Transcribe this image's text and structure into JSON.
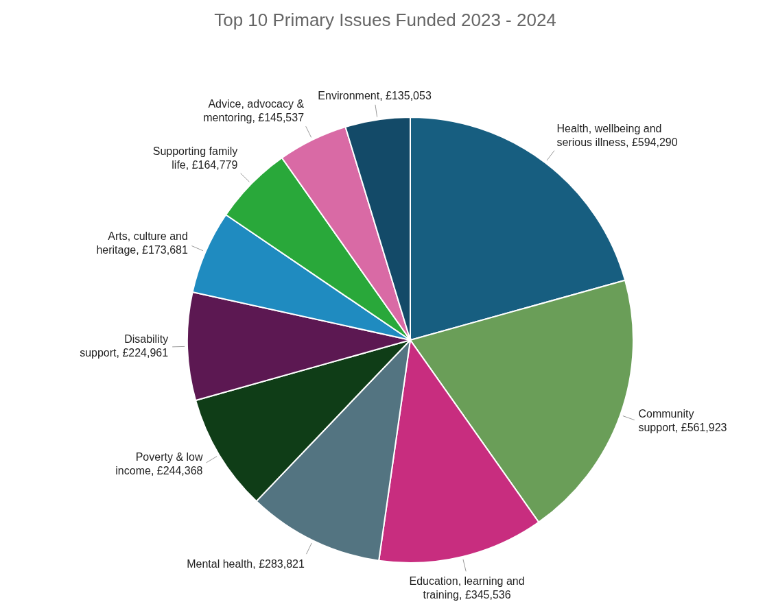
{
  "chart_data": {
    "type": "pie",
    "title": "Top 10 Primary Issues Funded 2023 - 2024",
    "categories": [
      "Health, wellbeing and serious illness",
      "Community support",
      "Education, learning and training",
      "Mental health",
      "Poverty & low income",
      "Disability support",
      "Arts, culture and heritage",
      "Supporting family life",
      "Advice, advocacy & mentoring",
      "Environment"
    ],
    "values": [
      594290,
      561923,
      345536,
      283821,
      244368,
      224961,
      173681,
      164779,
      145537,
      135053
    ],
    "value_labels": [
      "£594,290",
      "£561,923",
      "£345,536",
      "£283,821",
      "£244,368",
      "£224,961",
      "£173,681",
      "£164,779",
      "£145,537",
      "£135,053"
    ],
    "colors": [
      "#175e80",
      "#6a9e58",
      "#c82d7f",
      "#537481",
      "#0f3d17",
      "#5c1852",
      "#1f8bc0",
      "#29a83a",
      "#d96aa5",
      "#134a68"
    ]
  }
}
